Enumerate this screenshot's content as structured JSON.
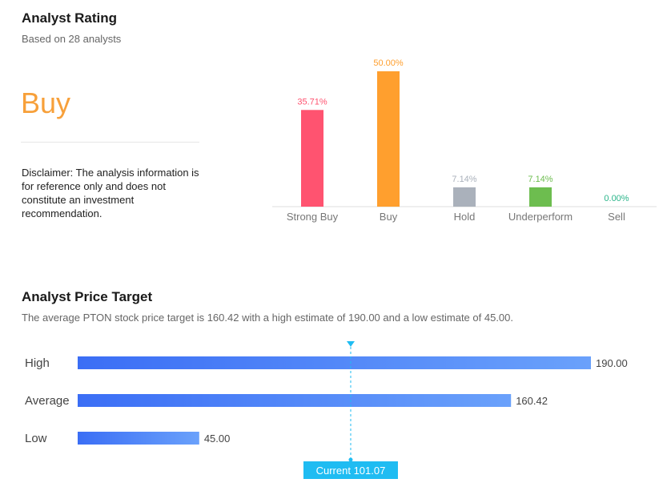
{
  "rating": {
    "title": "Analyst Rating",
    "subtitle": "Based on 28 analysts",
    "value": "Buy",
    "value_color": "#f7a03a",
    "disclaimer": "Disclaimer: The analysis information is for reference only and does not constitute an investment recommendation."
  },
  "target": {
    "title": "Analyst Price Target",
    "subtitle": "The average PTON stock price target is 160.42 with a high estimate of 190.00 and a low estimate of 45.00."
  },
  "chart_data": [
    {
      "type": "bar",
      "categories": [
        "Strong Buy",
        "Buy",
        "Hold",
        "Underperform",
        "Sell"
      ],
      "values": [
        35.71,
        50.0,
        7.14,
        7.14,
        0.0
      ],
      "labels": [
        "35.71%",
        "50.00%",
        "7.14%",
        "7.14%",
        "0.00%"
      ],
      "colors": [
        "#ff5370",
        "#ff9f2e",
        "#aab1bb",
        "#6dbd4f",
        "#2bb58a"
      ],
      "ylim": [
        0,
        50
      ]
    },
    {
      "type": "bar",
      "orientation": "horizontal",
      "categories": [
        "High",
        "Average",
        "Low"
      ],
      "values": [
        190.0,
        160.42,
        45.0
      ],
      "labels": [
        "190.00",
        "160.42",
        "45.00"
      ],
      "xlim": [
        0,
        190
      ],
      "current": {
        "value": 101.07,
        "label": "Current 101.07",
        "color": "#1fbcf2"
      },
      "bar_gradient": [
        "#3b6ef5",
        "#6aa1fb"
      ]
    }
  ]
}
